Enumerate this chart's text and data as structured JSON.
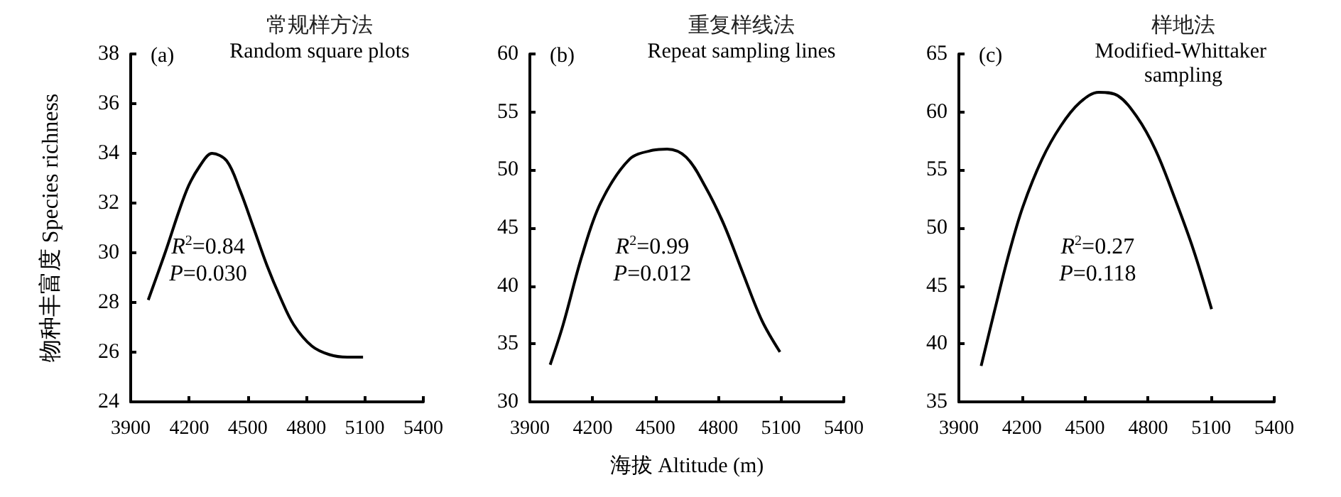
{
  "chart_data": [
    {
      "type": "line",
      "title": "常规样方法",
      "subtitle": "Random square plots",
      "ylabel": "物种丰富度 Species richness",
      "annotations": [
        "(a)",
        "R$^{2}$=0.84",
        "P=0.030"
      ],
      "xlim": [
        3900,
        5400
      ],
      "xticks": [
        3900,
        4200,
        4500,
        4800,
        5100,
        5400
      ],
      "ylim": [
        24,
        38
      ],
      "yticks": [
        24,
        26,
        28,
        30,
        32,
        34,
        36,
        38
      ],
      "series": [
        {
          "color": "#000000",
          "x": [
            3990,
            4072,
            4186,
            4255,
            4317,
            4392,
            4461,
            4530,
            4598,
            4667,
            4736,
            4828,
            4919,
            5010,
            5091
          ],
          "values": [
            28.1,
            29.9,
            32.5,
            33.5,
            34.0,
            33.7,
            32.5,
            31.0,
            29.5,
            28.2,
            27.1,
            26.25,
            25.9,
            25.8,
            25.8
          ]
        }
      ]
    },
    {
      "type": "line",
      "title": "重复样线法",
      "subtitle": "Repeat sampling lines",
      "xlabel": "海拔 Altitude (m)",
      "annotations": [
        "(b)",
        "R$^{2}$=0.99",
        "P=0.012"
      ],
      "xlim": [
        3900,
        5400
      ],
      "xticks": [
        3900,
        4200,
        4500,
        4800,
        5100,
        5400
      ],
      "ylim": [
        30,
        60
      ],
      "yticks": [
        30,
        35,
        40,
        45,
        50,
        55,
        60
      ],
      "series": [
        {
          "color": "#000000",
          "x": [
            3997,
            4058,
            4149,
            4239,
            4375,
            4488,
            4556,
            4647,
            4737,
            4827,
            4918,
            5009,
            5095
          ],
          "values": [
            33.2,
            36.6,
            42.6,
            47.2,
            50.9,
            51.7,
            51.8,
            51.1,
            48.6,
            45.3,
            41.1,
            37.0,
            34.3
          ]
        }
      ]
    },
    {
      "type": "line",
      "title": "样地法",
      "subtitle": "Modified-Whittaker sampling",
      "annotations": [
        "(c)",
        "R$^{2}$=0.27",
        "P=0.118"
      ],
      "xlim": [
        3900,
        5400
      ],
      "xticks": [
        3900,
        4200,
        4500,
        4800,
        5100,
        5400
      ],
      "ylim": [
        35,
        65
      ],
      "yticks": [
        35,
        40,
        45,
        50,
        55,
        60,
        65
      ],
      "series": [
        {
          "color": "#000000",
          "x": [
            4006,
            4069,
            4137,
            4204,
            4295,
            4385,
            4475,
            4566,
            4656,
            4746,
            4836,
            4926,
            5016,
            5102
          ],
          "values": [
            38.1,
            42.8,
            47.7,
            51.8,
            55.9,
            58.8,
            60.8,
            61.7,
            61.4,
            59.6,
            56.7,
            52.6,
            48.1,
            43.0
          ]
        }
      ]
    }
  ]
}
